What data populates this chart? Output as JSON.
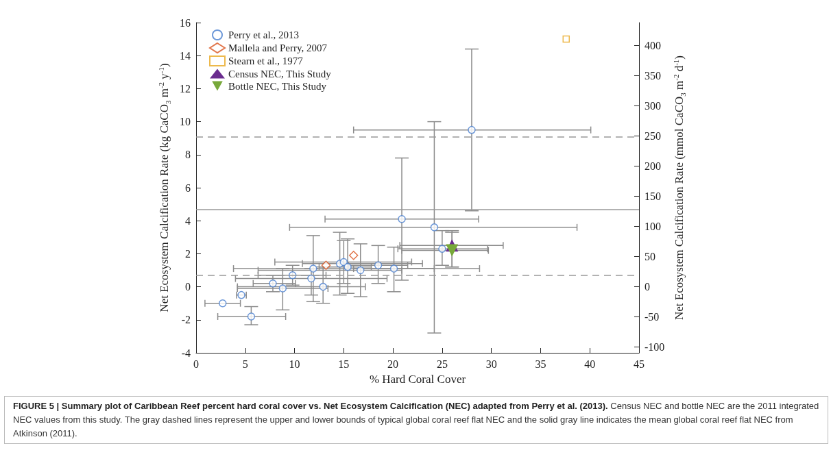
{
  "chart_data": {
    "type": "scatter",
    "xlabel": "% Hard Coral Cover",
    "ylabel": "Net Ecosystem Calcification Rate (kg CaCO$_{3}$ m$^{-2}$ y$^{-1}$)",
    "y2label": "Net Ecosystem Calcification Rate (mmol CaCO$_{3}$ m$^{-2}$ d$^{-1}$)",
    "annotations": [
      "FIGURE 5 | Summary plot of Caribbean Reef percent hard coral cover vs. Net Ecosystem Calcification (NEC) adapted from Perry et al. (2013).",
      "Census NEC and bottle NEC are the 2011 integrated NEC values from this study. The gray dashed lines represent the upper and lower bounds of typical global coral reef flat NEC and the solid gray line indicates the mean global coral reef flat NEC from Atkinson (2011)."
    ],
    "xlim": [
      0,
      45
    ],
    "xticks": [
      0,
      5,
      10,
      15,
      20,
      25,
      30,
      35,
      40,
      45
    ],
    "ylim": [
      -4,
      16
    ],
    "yticks": [
      -4,
      -2,
      0,
      2,
      4,
      6,
      8,
      10,
      12,
      14,
      16
    ],
    "y2lim": [
      -109.5,
      437.9
    ],
    "y2ticks": [
      -100,
      -50,
      0,
      50,
      100,
      150,
      200,
      250,
      300,
      350,
      400
    ],
    "grid": false,
    "legend": "top left",
    "ref_lines": [
      {
        "axis": "y",
        "value": 9.1,
        "color": "#999999",
        "line_style": "dashed"
      },
      {
        "axis": "y",
        "value": 0.7,
        "color": "#999999",
        "line_style": "dashed"
      },
      {
        "axis": "y",
        "value": 4.7,
        "color": "#999999",
        "line_style": "solid"
      }
    ],
    "series": [
      {
        "name": "Perry et al., 2013",
        "color": "#4a7fd0",
        "marker": "circle",
        "x": [
          2.7,
          4.6,
          5.6,
          7.8,
          8.8,
          9.8,
          11.7,
          11.9,
          12.9,
          14.6,
          15.0,
          15.4,
          16.7,
          18.5,
          20.1,
          20.9,
          24.2,
          25.0,
          28.0
        ],
        "values": [
          -1.0,
          -0.5,
          -1.8,
          0.2,
          -0.1,
          0.7,
          0.5,
          1.1,
          0.0,
          1.4,
          1.5,
          1.2,
          1.0,
          1.3,
          1.1,
          4.1,
          3.6,
          2.3,
          9.5
        ],
        "errors": [
          null,
          null,
          [
            -2.3,
            -1.2
          ],
          [
            -0.3,
            0.7
          ],
          [
            -1.4,
            1.1
          ],
          [
            0.1,
            1.3
          ],
          [
            -0.5,
            1.1
          ],
          [
            -0.9,
            3.1
          ],
          [
            -1.0,
            1.2
          ],
          [
            -0.5,
            3.3
          ],
          [
            0.2,
            2.8
          ],
          [
            -0.4,
            2.9
          ],
          [
            -0.6,
            2.6
          ],
          [
            0.2,
            2.5
          ],
          [
            -0.3,
            2.4
          ],
          [
            0.4,
            7.8
          ],
          [
            -2.8,
            10.0
          ],
          [
            1.3,
            3.4
          ],
          [
            4.6,
            14.4
          ]
        ],
        "xerrors": [
          [
            0.9,
            4.5
          ],
          [
            4.1,
            5.1
          ],
          [
            2.2,
            9.1
          ],
          [
            5.8,
            10.1
          ],
          [
            4.2,
            13.4
          ],
          [
            6.3,
            13.2
          ],
          [
            4.0,
            19.4
          ],
          [
            3.8,
            28.8
          ],
          [
            4.2,
            17.2
          ],
          [
            10.8,
            23.0
          ],
          [
            8.0,
            21.9
          ],
          [
            12.5,
            17.8
          ],
          [
            6.3,
            20.9
          ],
          [
            15.5,
            21.5
          ],
          [
            16.0,
            24.2
          ],
          [
            13.1,
            28.7
          ],
          [
            9.5,
            38.7
          ],
          [
            20.5,
            29.6
          ],
          [
            16.0,
            40.1
          ]
        ]
      },
      {
        "name": "Mallela and Perry, 2007",
        "color": "#d9541e",
        "marker": "diamond",
        "x": [
          13.2,
          16.0
        ],
        "values": [
          1.3,
          1.9
        ]
      },
      {
        "name": "Stearn et al., 1977",
        "color": "#e8a820",
        "marker": "square",
        "x": [
          37.6
        ],
        "values": [
          15.0
        ]
      },
      {
        "name": "Census NEC, This Study",
        "color": "#6a2c8e",
        "marker": "triangle",
        "x": [
          26.0
        ],
        "values": [
          2.5
        ],
        "errors": [
          [
            1.2,
            3.3
          ]
        ],
        "xerrors": [
          [
            20.7,
            31.2
          ]
        ]
      },
      {
        "name": "Bottle NEC, This Study",
        "color": "#77a83a",
        "marker": "triangle-down",
        "x": [
          26.0
        ],
        "values": [
          2.2
        ],
        "errors": [
          [
            1.2,
            3.4
          ]
        ],
        "xerrors": [
          [
            20.9,
            29.7
          ]
        ]
      }
    ]
  }
}
